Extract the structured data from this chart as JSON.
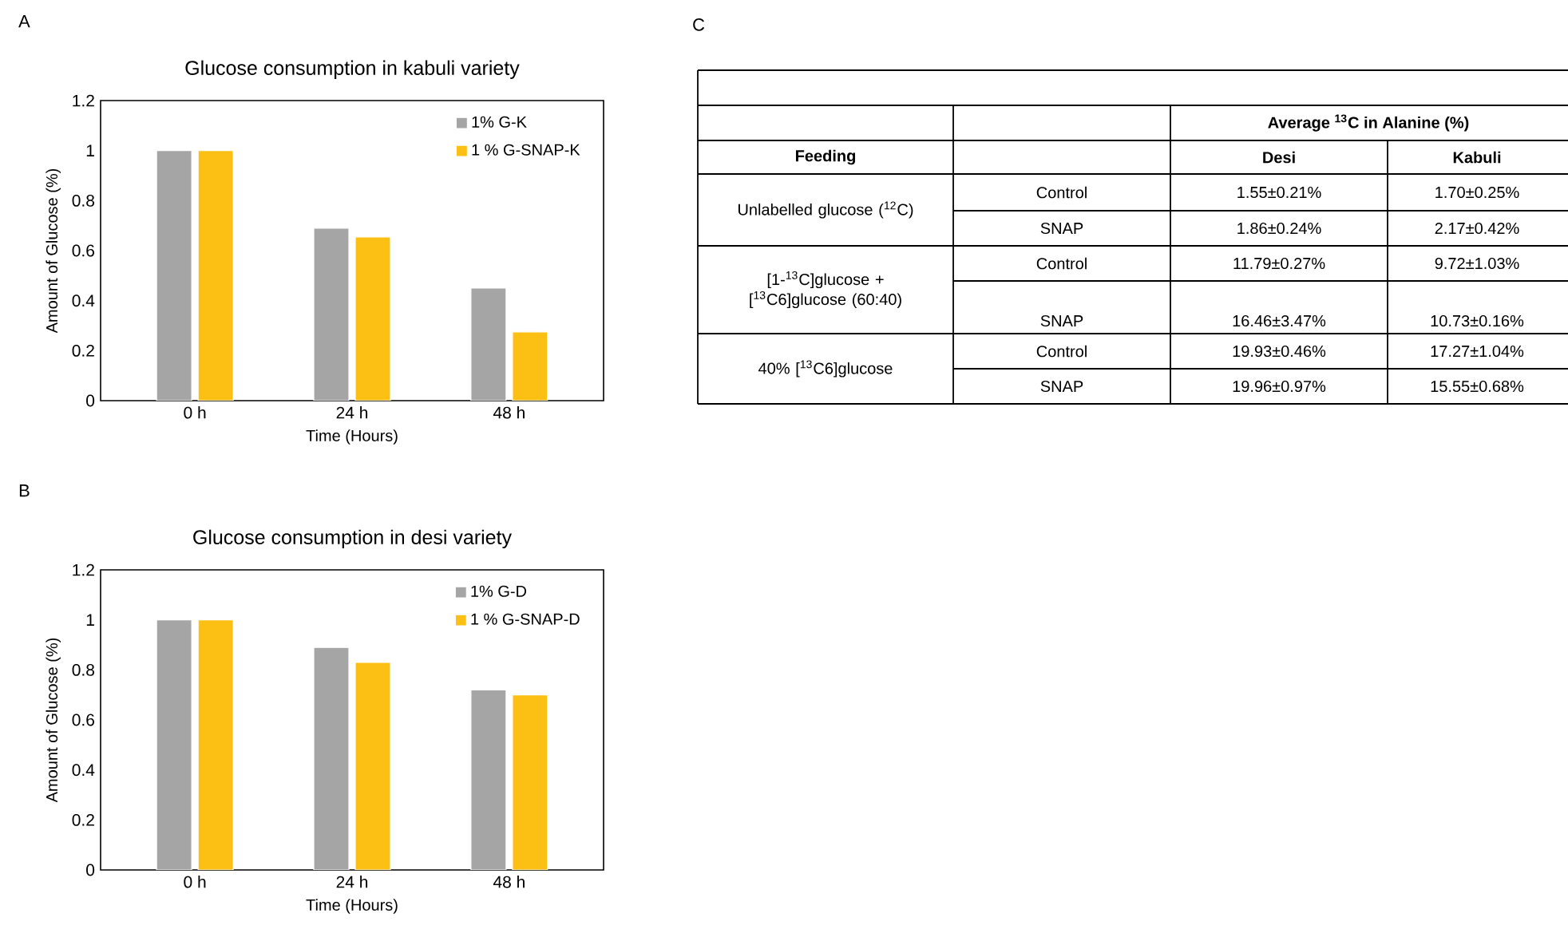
{
  "chart_data": [
    {
      "type": "bar",
      "title": "Glucose consumption in kabuli variety",
      "xlabel": "Time (Hours)",
      "ylabel": "Amount of Glucose (%)",
      "categories": [
        "0  h",
        "24  h",
        "48  h"
      ],
      "series": [
        {
          "name": "1% G-K",
          "color": "#a5a5a5",
          "values": [
            1,
            0.69,
            0.45
          ]
        },
        {
          "name": "1 % G-SNAP-K",
          "color": "#fcbf14",
          "values": [
            1,
            0.655,
            0.275
          ]
        }
      ],
      "ylim": [
        0,
        1.2
      ],
      "yticks": [
        0,
        0.2,
        0.4,
        0.6,
        0.8,
        1,
        1.2
      ],
      "legend": "top right",
      "annotations": [
        "A"
      ]
    },
    {
      "type": "bar",
      "title": "Glucose consumption in desi variety",
      "xlabel": "Time (Hours)",
      "ylabel": "Amount of Glucose (%)",
      "categories": [
        "0  h",
        "24  h",
        "48  h"
      ],
      "series": [
        {
          "name": "1% G-D",
          "color": "#a5a5a5",
          "values": [
            1,
            0.89,
            0.72
          ]
        },
        {
          "name": "1 % G-SNAP-D",
          "color": "#fcbf14",
          "values": [
            1,
            0.83,
            0.7
          ]
        }
      ],
      "ylim": [
        0,
        1.2
      ],
      "yticks": [
        0,
        0.2,
        0.4,
        0.6,
        0.8,
        1,
        1.2
      ],
      "legend": "top right",
      "annotations": [
        "B"
      ]
    },
    {
      "type": "other",
      "annotations": [
        "C",
        "Average $^{13}$C in Alanine (%)",
        "Feeding",
        "Desi",
        "Kabuli",
        "Unlabelled glucose ($^{12}$C)",
        "[1-$^{13}$C]glucose + [$^{13}$C6]glucose (60:40)",
        "40% [$^{13}$C6]glucose",
        "Control",
        "1.55±0.21%",
        "1.70±0.25%",
        "SNAP",
        "1.86±0.24%",
        "2.17±0.42%",
        "Control",
        "11.79±0.27%",
        "9.72±1.03%",
        "SNAP",
        "16.46±3.47%",
        "10.73±0.16%",
        "Control",
        "19.93±0.46%",
        "17.27±1.04%",
        "SNAP",
        "19.96±0.97%",
        "15.55±0.68%"
      ]
    }
  ]
}
